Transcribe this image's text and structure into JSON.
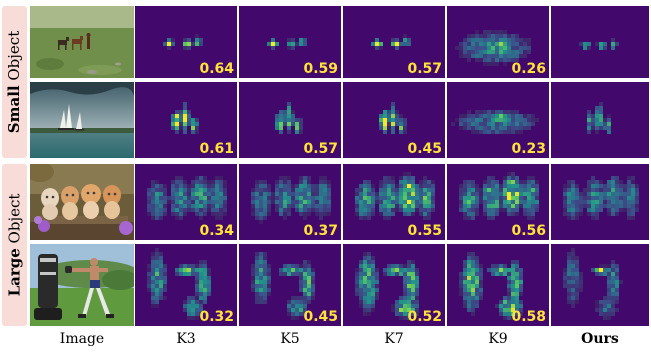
{
  "colors": {
    "heatmap_bg": "#43086b",
    "score_text": "#ffe33a",
    "label_band": "#f8dcd8"
  },
  "groups": [
    {
      "bold": "Small",
      "rest": " Object"
    },
    {
      "bold": "Large",
      "rest": " Object"
    }
  ],
  "columns": [
    "Image",
    "K3",
    "K5",
    "K7",
    "K9",
    "Ours"
  ],
  "rows": [
    {
      "name": "horses",
      "scores": [
        "0.64",
        "0.59",
        "0.57",
        "0.26"
      ]
    },
    {
      "name": "sailboats",
      "scores": [
        "0.61",
        "0.57",
        "0.45",
        "0.23"
      ]
    },
    {
      "name": "kittens",
      "scores": [
        "0.34",
        "0.37",
        "0.55",
        "0.56"
      ]
    },
    {
      "name": "boxer",
      "scores": [
        "0.32",
        "0.45",
        "0.52",
        "0.58"
      ]
    }
  ]
}
